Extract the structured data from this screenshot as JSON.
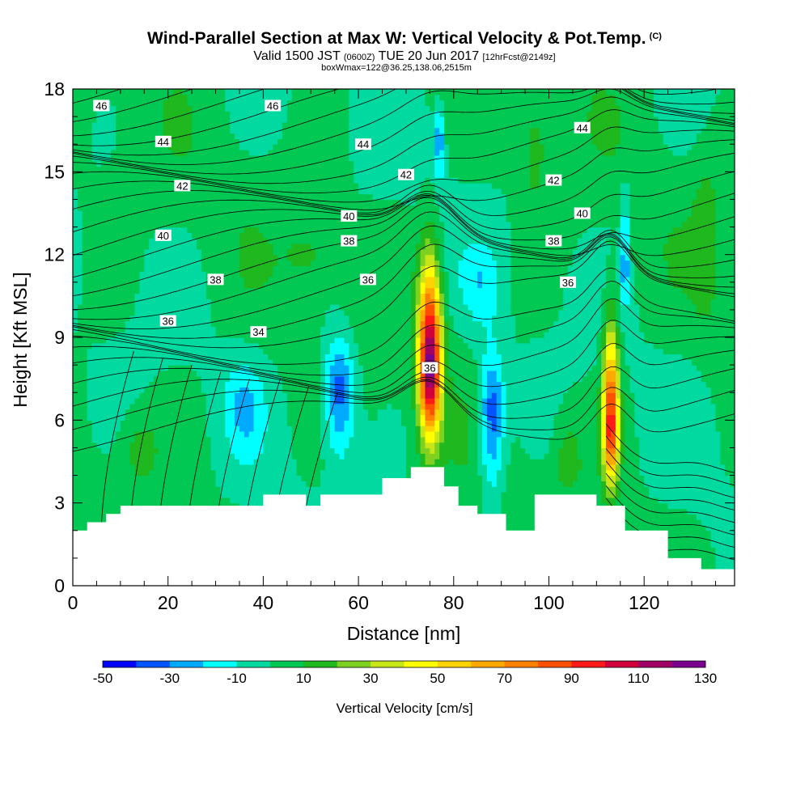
{
  "title": {
    "main": "Wind-Parallel Section at Max W: Vertical Velocity & Pot.Temp.",
    "copyright": "(C)",
    "valid_prefix": "Valid 1500 JST",
    "utc_time": "(0600Z)",
    "valid_date": "TUE 20 Jun 2017",
    "forecast_info": "[12hrFcst@2149z]",
    "box_info": "boxWmax=122@36.25,138.06,2515m"
  },
  "colors": {
    "background": "#ffffff",
    "terrain": "#ffffff",
    "contour_line": "#000000",
    "field_base": "#00d987"
  },
  "chart_data": {
    "type": "heatmap",
    "title": "Wind-Parallel Section at Max W: Vertical Velocity & Pot.Temp.",
    "xlabel": "Distance [nm]",
    "ylabel": "Height [Kft MSL]",
    "xlim": [
      0,
      139
    ],
    "ylim": [
      0,
      18
    ],
    "x_ticks": [
      0,
      20,
      40,
      60,
      80,
      100,
      120
    ],
    "y_ticks": [
      0,
      3,
      6,
      9,
      12,
      15,
      18
    ],
    "grid": false,
    "colorbar": {
      "label": "Vertical Velocity [cm/s]",
      "placement": "bottom",
      "levels": [
        -50,
        -40,
        -30,
        -20,
        -10,
        0,
        10,
        20,
        30,
        40,
        50,
        60,
        70,
        80,
        90,
        100,
        110,
        120,
        130
      ],
      "tick_labels": [
        "-50",
        "-30",
        "-10",
        "10",
        "30",
        "50",
        "70",
        "90",
        "110",
        "130"
      ],
      "colors": [
        "#0000ff",
        "#0055ff",
        "#00aaff",
        "#00ffff",
        "#00d9a0",
        "#00c853",
        "#1fb81f",
        "#7fd11f",
        "#c8e617",
        "#ffff00",
        "#ffd300",
        "#ffa800",
        "#ff7f00",
        "#ff4f00",
        "#ff1a1a",
        "#d1003c",
        "#a00064",
        "#7a0090"
      ]
    },
    "vertical_velocity_features": [
      {
        "kind": "updraft",
        "x_center": 75,
        "x_halfwidth": 3.5,
        "z_bottom": 4.2,
        "z_top": 13.2,
        "z_peak": 8.0,
        "peak_value": 122
      },
      {
        "kind": "updraft",
        "x_center": 113,
        "x_halfwidth": 2.5,
        "z_bottom": 2.8,
        "z_top": 11.0,
        "z_peak": 5.8,
        "peak_value": 95
      },
      {
        "kind": "downdraft",
        "x_center": 56,
        "x_halfwidth": 5,
        "z_bottom": 3.5,
        "z_top": 10.0,
        "z_peak": 7.2,
        "peak_value": -40
      },
      {
        "kind": "downdraft",
        "x_center": 88,
        "x_halfwidth": 4,
        "z_bottom": 2.0,
        "z_top": 9.5,
        "z_peak": 6.3,
        "peak_value": -40
      },
      {
        "kind": "downdraft",
        "x_center": 77,
        "x_halfwidth": 1.5,
        "z_bottom": 14.0,
        "z_top": 18.0,
        "z_peak": 16.2,
        "peak_value": -30
      },
      {
        "kind": "downdraft",
        "x_center": 116,
        "x_halfwidth": 1.2,
        "z_bottom": 9.5,
        "z_top": 16.0,
        "z_peak": 11.5,
        "peak_value": -30
      },
      {
        "kind": "downdraft",
        "x_center": 36,
        "x_halfwidth": 6,
        "z_bottom": 4.0,
        "z_top": 9.0,
        "z_peak": 6.5,
        "peak_value": -18
      },
      {
        "kind": "downdraft",
        "x_center": 86,
        "x_halfwidth": 6,
        "z_bottom": 8.5,
        "z_top": 13.0,
        "z_peak": 11.0,
        "peak_value": -15
      },
      {
        "kind": "updraft",
        "x_center": 14,
        "x_halfwidth": 6,
        "z_bottom": 3.0,
        "z_top": 7.0,
        "z_peak": 5.0,
        "peak_value": 12
      },
      {
        "kind": "updraft",
        "x_center": 97,
        "x_halfwidth": 4,
        "z_bottom": 12.5,
        "z_top": 18.0,
        "z_peak": 16.0,
        "peak_value": 14
      },
      {
        "kind": "updraft",
        "x_center": 50,
        "x_halfwidth": 8,
        "z_bottom": 10.0,
        "z_top": 14.0,
        "z_peak": 12.0,
        "peak_value": 10
      },
      {
        "kind": "updraft",
        "x_center": 133,
        "x_halfwidth": 4,
        "z_bottom": 8.0,
        "z_top": 17.0,
        "z_peak": 13.0,
        "peak_value": 11
      },
      {
        "kind": "updraft",
        "x_center": 104,
        "x_halfwidth": 4,
        "z_bottom": 3.0,
        "z_top": 7.0,
        "z_peak": 4.5,
        "peak_value": 14
      }
    ],
    "terrain_profile": [
      {
        "x": 0,
        "height": 2.0
      },
      {
        "x": 3,
        "height": 2.3
      },
      {
        "x": 7,
        "height": 2.6
      },
      {
        "x": 10,
        "height": 2.9
      },
      {
        "x": 35,
        "height": 2.9
      },
      {
        "x": 40,
        "height": 3.3
      },
      {
        "x": 49,
        "height": 2.9
      },
      {
        "x": 52,
        "height": 3.3
      },
      {
        "x": 65,
        "height": 3.9
      },
      {
        "x": 71,
        "height": 4.3
      },
      {
        "x": 78,
        "height": 3.6
      },
      {
        "x": 81,
        "height": 2.9
      },
      {
        "x": 85,
        "height": 2.6
      },
      {
        "x": 91,
        "height": 2.0
      },
      {
        "x": 97,
        "height": 3.3
      },
      {
        "x": 110,
        "height": 2.9
      },
      {
        "x": 116,
        "height": 2.0
      },
      {
        "x": 125,
        "height": 1.0
      },
      {
        "x": 132,
        "height": 0.6
      },
      {
        "x": 139,
        "height": 0.5
      }
    ],
    "potential_temperature_contours": {
      "label_values": [
        34,
        36,
        38,
        40,
        42,
        44,
        46
      ],
      "labels": [
        {
          "text": "46",
          "x": 6,
          "y": 17.4
        },
        {
          "text": "46",
          "x": 42,
          "y": 17.4
        },
        {
          "text": "44",
          "x": 19,
          "y": 16.1
        },
        {
          "text": "44",
          "x": 61,
          "y": 16.0
        },
        {
          "text": "44",
          "x": 107,
          "y": 16.6
        },
        {
          "text": "42",
          "x": 23,
          "y": 14.5
        },
        {
          "text": "42",
          "x": 70,
          "y": 14.9
        },
        {
          "text": "42",
          "x": 101,
          "y": 14.7
        },
        {
          "text": "40",
          "x": 19,
          "y": 12.7
        },
        {
          "text": "40",
          "x": 58,
          "y": 13.4
        },
        {
          "text": "40",
          "x": 107,
          "y": 13.5
        },
        {
          "text": "38",
          "x": 30,
          "y": 11.1
        },
        {
          "text": "38",
          "x": 58,
          "y": 12.5
        },
        {
          "text": "38",
          "x": 101,
          "y": 12.5
        },
        {
          "text": "36",
          "x": 20,
          "y": 9.6
        },
        {
          "text": "36",
          "x": 62,
          "y": 11.1
        },
        {
          "text": "36",
          "x": 75,
          "y": 7.9
        },
        {
          "text": "36",
          "x": 104,
          "y": 11.0
        },
        {
          "text": "34",
          "x": 39,
          "y": 9.2
        }
      ]
    }
  }
}
